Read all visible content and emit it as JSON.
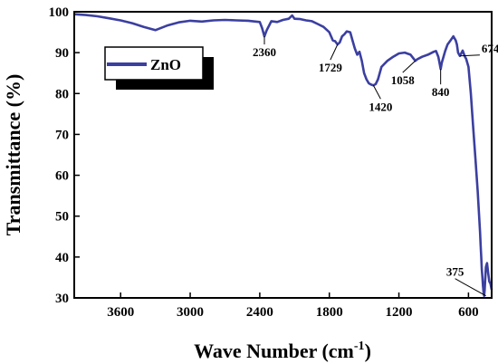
{
  "chart_data": {
    "type": "line",
    "xlabel_main": "Wave Number (cm",
    "xlabel_sup": "-1",
    "xlabel_close": ")",
    "ylabel": "Transmittance (%)",
    "xlim": [
      4000,
      400
    ],
    "ylim": [
      30,
      100
    ],
    "xticks": [
      3600,
      3000,
      2400,
      1800,
      1200,
      600
    ],
    "yticks": [
      30,
      40,
      50,
      60,
      70,
      80,
      90,
      100
    ],
    "grid": false,
    "legend_position": "top-left",
    "series": [
      {
        "name": "ZnO",
        "color": "#3b3fa0",
        "x": [
          4000,
          3900,
          3800,
          3700,
          3600,
          3500,
          3400,
          3300,
          3200,
          3100,
          3000,
          2900,
          2800,
          2700,
          2600,
          2500,
          2400,
          2380,
          2360,
          2340,
          2300,
          2250,
          2200,
          2150,
          2120,
          2100,
          2050,
          2000,
          1950,
          1900,
          1850,
          1800,
          1770,
          1750,
          1729,
          1710,
          1690,
          1670,
          1650,
          1620,
          1600,
          1580,
          1560,
          1540,
          1520,
          1500,
          1480,
          1460,
          1440,
          1420,
          1400,
          1380,
          1350,
          1300,
          1250,
          1200,
          1150,
          1100,
          1058,
          1040,
          1000,
          950,
          900,
          880,
          860,
          850,
          840,
          830,
          800,
          780,
          750,
          730,
          710,
          700,
          690,
          674,
          650,
          630,
          620,
          600,
          580,
          560,
          540,
          520,
          510,
          500,
          495,
          490,
          485,
          480,
          475,
          470,
          465,
          460,
          455,
          450,
          445,
          440,
          430,
          420,
          410,
          400
        ],
        "y": [
          99.4,
          99.2,
          98.9,
          98.4,
          97.9,
          97.2,
          96.3,
          95.5,
          96.6,
          97.4,
          97.8,
          97.6,
          97.9,
          98.0,
          97.9,
          97.8,
          97.5,
          96.0,
          94.0,
          95.5,
          97.7,
          97.5,
          98.0,
          98.3,
          99.1,
          98.3,
          98.2,
          97.9,
          97.7,
          97.0,
          96.3,
          95.0,
          93.0,
          92.8,
          92.0,
          92.5,
          94.0,
          94.5,
          95.2,
          95.0,
          93.0,
          91.0,
          89.5,
          90.2,
          88.0,
          85.0,
          83.5,
          82.5,
          82.2,
          82.0,
          82.3,
          83.5,
          86.5,
          88.0,
          89.0,
          89.8,
          90.0,
          89.5,
          88.0,
          88.4,
          89.0,
          89.5,
          90.2,
          90.4,
          89.0,
          87.5,
          86.0,
          87.5,
          90.5,
          92.0,
          93.2,
          94.0,
          93.0,
          92.0,
          90.0,
          89.2,
          90.5,
          89.0,
          88.5,
          86.5,
          80.0,
          72.0,
          64.0,
          56.0,
          51.0,
          46.0,
          43.0,
          40.0,
          37.0,
          35.0,
          33.0,
          31.5,
          30.5,
          32.0,
          35.0,
          37.5,
          38.0,
          38.5,
          36.0,
          34.0,
          33.5,
          32.0
        ]
      }
    ],
    "annotations": [
      {
        "label": "2360",
        "x": 2360,
        "y": 94
      },
      {
        "label": "1729",
        "x": 1729,
        "y": 92
      },
      {
        "label": "1420",
        "x": 1420,
        "y": 82
      },
      {
        "label": "1058",
        "x": 1058,
        "y": 88
      },
      {
        "label": "840",
        "x": 840,
        "y": 86
      },
      {
        "label": "674",
        "x": 674,
        "y": 89.2
      },
      {
        "label": "375",
        "x": 450,
        "y": 30.5
      }
    ]
  }
}
